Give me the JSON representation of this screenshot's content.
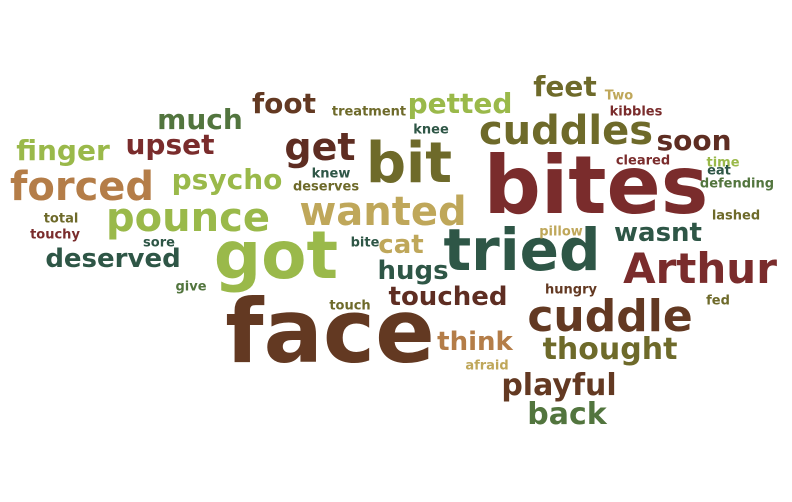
{
  "words": {
    "face": "face",
    "bites": "bites",
    "got": "got",
    "tried": "tried",
    "bit": "bit",
    "arthur": "Arthur",
    "cuddle": "cuddle",
    "cuddles": "cuddles",
    "pounce": "pounce",
    "wanted": "wanted",
    "forced": "forced",
    "get": "get",
    "playful": "playful",
    "back": "back",
    "thought": "thought",
    "touched": "touched",
    "deserved": "deserved",
    "much": "much",
    "foot": "foot",
    "petted": "petted",
    "feet": "feet",
    "finger": "finger",
    "upset": "upset",
    "psycho": "psycho",
    "soon": "soon",
    "hugs": "hugs",
    "wasnt": "wasnt",
    "cat": "cat",
    "think": "think",
    "treatment": "treatment",
    "knee": "knee",
    "two": "Two",
    "kibbles": "kibbles",
    "cleared": "cleared",
    "time": "time",
    "knew": "knew",
    "deserves": "deserves",
    "eat": "eat",
    "defending": "defending",
    "lashed": "lashed",
    "total": "total",
    "touchy": "touchy",
    "pillow": "pillow",
    "sore": "sore",
    "bite": "bite",
    "give": "give",
    "hungry": "hungry",
    "touch": "touch",
    "fed": "fed",
    "afraid": "afraid"
  },
  "palette": [
    "#633922",
    "#7a2c2c",
    "#2e5646",
    "#9ab94a",
    "#bfa75a",
    "#b47d48",
    "#52753e",
    "#6e6a2a",
    "#5e2d22"
  ]
}
